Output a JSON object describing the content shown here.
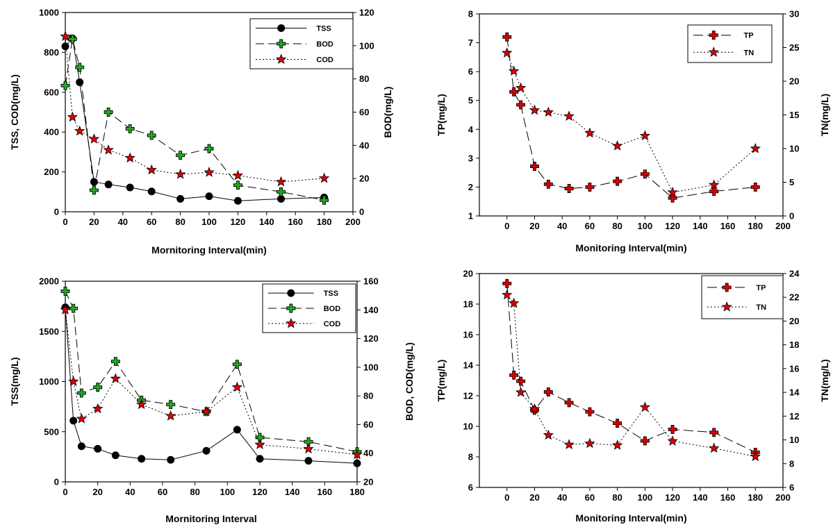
{
  "chart_data": [
    {
      "type": "line",
      "x": [
        0,
        5,
        10,
        20,
        30,
        45,
        60,
        80,
        100,
        120,
        150,
        180
      ],
      "xlim": [
        0,
        200
      ],
      "xticks": [
        "0",
        "20",
        "40",
        "60",
        "80",
        "100",
        "120",
        "140",
        "160",
        "180",
        "200"
      ],
      "xlabel": "Mornitoring Interval(min)",
      "ylabel": "TSS, COD(mg/L)",
      "ylim": [
        0,
        1000
      ],
      "yticks": [
        "0",
        "200",
        "400",
        "600",
        "800",
        "1000"
      ],
      "y2label": "BOD(mg/L)",
      "y2lim": [
        0,
        120
      ],
      "y2ticks": [
        "0",
        "20",
        "40",
        "60",
        "80",
        "100",
        "120"
      ],
      "legend_position": "top-right",
      "series": [
        {
          "name": "TSS",
          "axis": "left",
          "marker": "circle",
          "dash": "solid",
          "color": "#000000",
          "values": [
            830,
            870,
            650,
            150,
            137,
            122,
            102,
            65,
            78,
            55,
            65,
            72
          ]
        },
        {
          "name": "BOD",
          "axis": "right",
          "marker": "plus",
          "dash": "dashed",
          "color": "#22aa22",
          "values": [
            76,
            104,
            87,
            13,
            60,
            50,
            46,
            34,
            38,
            16,
            12,
            7
          ]
        },
        {
          "name": "COD",
          "axis": "left",
          "marker": "star",
          "dash": "dotted",
          "color": "#dd0000",
          "values": [
            880,
            475,
            405,
            365,
            310,
            270,
            210,
            188,
            198,
            182,
            150,
            168
          ]
        }
      ]
    },
    {
      "type": "line",
      "x": [
        0,
        5,
        10,
        20,
        30,
        45,
        60,
        80,
        100,
        120,
        150,
        180
      ],
      "xlim": [
        -20,
        200
      ],
      "xticks": [
        "0",
        "20",
        "40",
        "60",
        "80",
        "100",
        "120",
        "140",
        "160",
        "180",
        "200"
      ],
      "xlabel": "Monitoring Interval(min)",
      "ylabel": "TP(mg/L)",
      "ylim": [
        1,
        8
      ],
      "yticks": [
        "1",
        "2",
        "3",
        "4",
        "5",
        "6",
        "7",
        "8"
      ],
      "y2label": "TN(mg/L)",
      "y2lim": [
        0,
        30
      ],
      "y2ticks": [
        "0",
        "5",
        "10",
        "15",
        "20",
        "25",
        "30"
      ],
      "legend_position": "top-right",
      "series": [
        {
          "name": "TP",
          "axis": "left",
          "marker": "plus",
          "dash": "longdash",
          "color": "#dd0000",
          "values": [
            7.2,
            5.3,
            4.85,
            2.72,
            2.1,
            1.95,
            2.0,
            2.2,
            2.45,
            1.62,
            1.85,
            2.0
          ]
        },
        {
          "name": "TN",
          "axis": "right",
          "marker": "star",
          "dash": "dotted",
          "color": "#dd0000",
          "values": [
            24.2,
            21.5,
            19.0,
            15.7,
            15.4,
            14.8,
            12.3,
            10.4,
            11.9,
            3.5,
            4.6,
            10.0
          ]
        }
      ]
    },
    {
      "type": "line",
      "x": [
        0,
        5,
        10,
        20,
        31,
        47,
        65,
        87,
        106,
        120,
        150,
        180
      ],
      "xlim": [
        0,
        180
      ],
      "xticks": [
        "0",
        "20",
        "40",
        "60",
        "80",
        "100",
        "120",
        "140",
        "160",
        "180"
      ],
      "xlabel": "Mornitoring Interval",
      "ylabel": "TSS(mg/L)",
      "ylim": [
        0,
        2000
      ],
      "yticks": [
        "0",
        "500",
        "1000",
        "1500",
        "2000"
      ],
      "y2label": "BOD, COD(mg/L)",
      "y2lim": [
        20,
        160
      ],
      "y2ticks": [
        "20",
        "40",
        "60",
        "80",
        "100",
        "120",
        "140",
        "160"
      ],
      "legend_position": "top-right",
      "series": [
        {
          "name": "TSS",
          "axis": "left",
          "marker": "circle",
          "dash": "solid",
          "color": "#000000",
          "values": [
            1740,
            610,
            355,
            330,
            265,
            230,
            220,
            310,
            520,
            230,
            210,
            185
          ]
        },
        {
          "name": "BOD",
          "axis": "right",
          "marker": "plus",
          "dash": "dashed",
          "color": "#22aa22",
          "values": [
            153,
            141,
            82,
            86,
            104,
            77,
            74,
            69,
            102,
            51,
            48,
            41
          ]
        },
        {
          "name": "COD",
          "axis": "right",
          "marker": "star",
          "dash": "dotted",
          "color": "#dd0000",
          "values": [
            140,
            90,
            64,
            71,
            92,
            74,
            66,
            69,
            86,
            46,
            43,
            39
          ]
        }
      ]
    },
    {
      "type": "line",
      "x": [
        0,
        5,
        10,
        20,
        30,
        45,
        60,
        80,
        100,
        120,
        150,
        180
      ],
      "xlim": [
        -20,
        200
      ],
      "xticks": [
        "0",
        "20",
        "40",
        "60",
        "80",
        "100",
        "120",
        "140",
        "160",
        "180",
        "200"
      ],
      "xlabel": "Monitoring Interval(min)",
      "ylabel": "TP(mg/L)",
      "ylim": [
        6,
        20
      ],
      "yticks": [
        "6",
        "8",
        "10",
        "12",
        "14",
        "16",
        "18",
        "20"
      ],
      "y2label": "TN(mg/L)",
      "y2lim": [
        6,
        24
      ],
      "y2ticks": [
        "6",
        "8",
        "10",
        "12",
        "14",
        "16",
        "18",
        "20",
        "22",
        "24"
      ],
      "legend_position": "top-right",
      "series": [
        {
          "name": "TP",
          "axis": "left",
          "marker": "plus",
          "dash": "longdash",
          "color": "#dd0000",
          "values": [
            19.35,
            13.35,
            12.95,
            11.05,
            12.25,
            11.55,
            10.95,
            10.2,
            9.05,
            9.8,
            9.6,
            8.3
          ]
        },
        {
          "name": "TN",
          "axis": "right",
          "marker": "star",
          "dash": "dotted",
          "color": "#dd0000",
          "values": [
            22.2,
            21.5,
            14.0,
            12.6,
            10.4,
            9.6,
            9.7,
            9.55,
            12.75,
            9.9,
            9.3,
            8.6
          ]
        }
      ]
    }
  ]
}
